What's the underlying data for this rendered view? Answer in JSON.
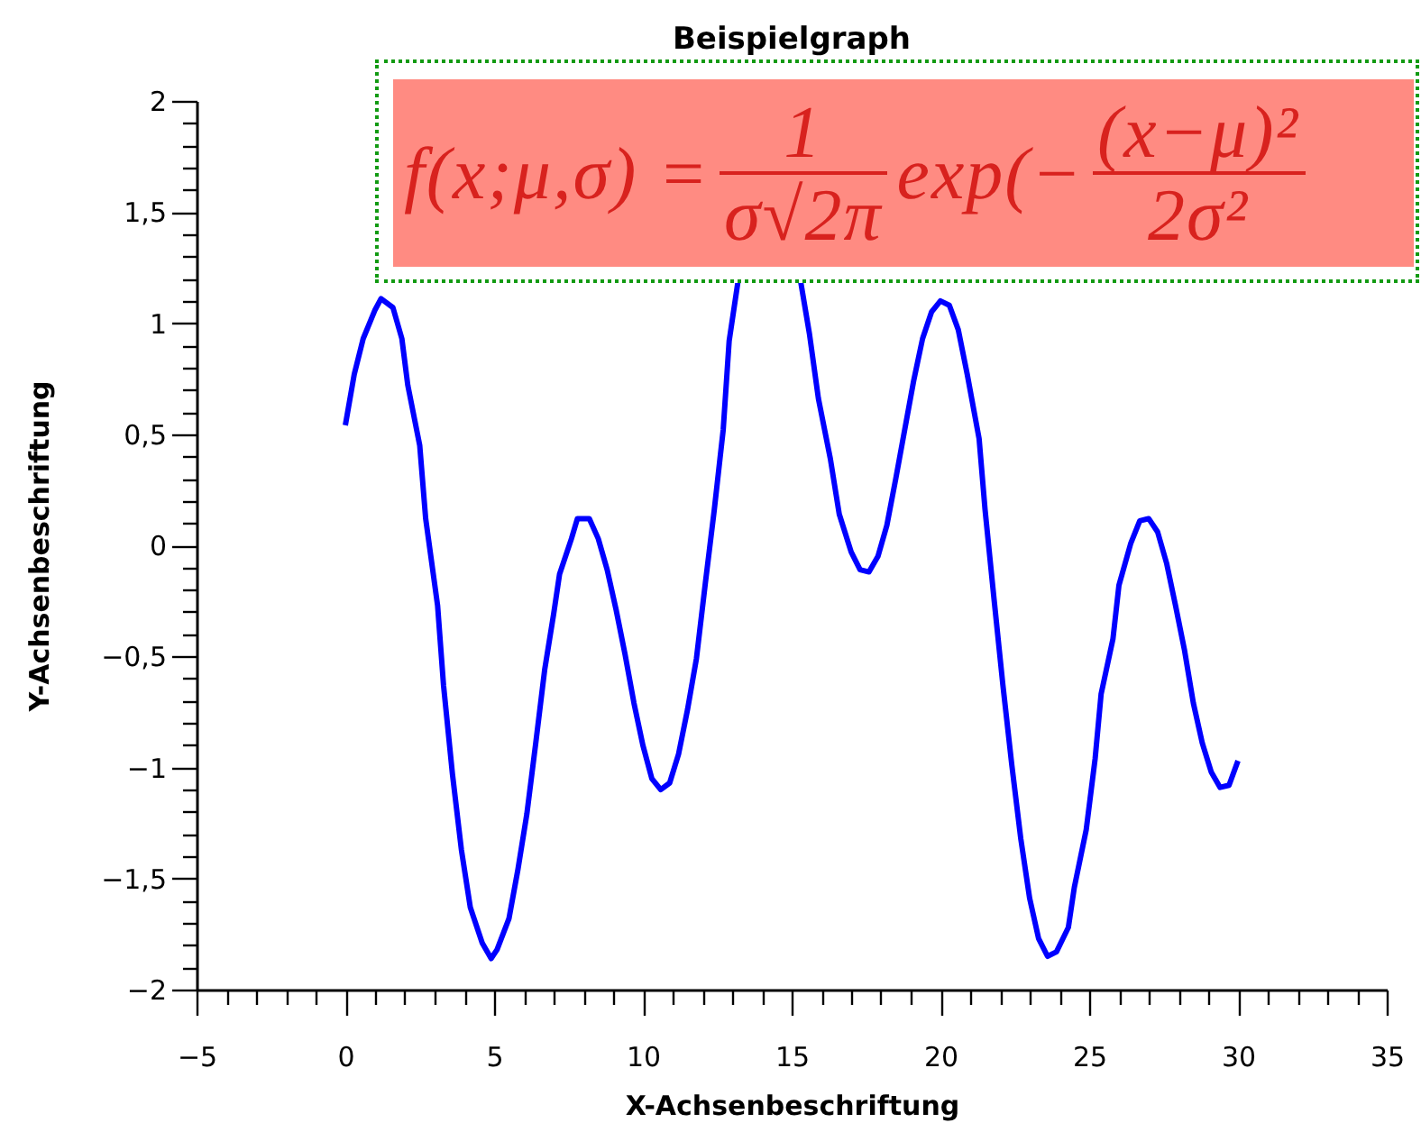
{
  "chart_data": {
    "type": "line",
    "title": "Beispielgraph",
    "xlabel": "X-Achsenbeschriftung",
    "ylabel": "Y-Achsenbeschriftung",
    "annotations": [
      "f(x;μ,σ) =",
      "1",
      "σ√2π",
      "exp(−",
      "(x−μ)²",
      "2σ²"
    ],
    "x": [
      0,
      0.3,
      0.6,
      1.0,
      1.2,
      1.6,
      1.9,
      2.1,
      2.5,
      2.7,
      3.1,
      3.3,
      3.6,
      3.9,
      4.2,
      4.6,
      4.9,
      5.1,
      5.5,
      5.8,
      6.1,
      6.4,
      6.7,
      7.0,
      7.2,
      7.6,
      7.8,
      8.2,
      8.5,
      8.8,
      9.1,
      9.4,
      9.7,
      10.0,
      10.3,
      10.6,
      10.9,
      11.2,
      11.5,
      11.8,
      12.1,
      12.4,
      12.7,
      12.9,
      13.2,
      14.3,
      15.3,
      15.6,
      15.9,
      16.3,
      16.6,
      17.0,
      17.3,
      17.6,
      17.9,
      18.2,
      18.5,
      18.8,
      19.1,
      19.4,
      19.7,
      20.0,
      20.3,
      20.6,
      20.9,
      21.3,
      21.5,
      21.8,
      22.1,
      22.4,
      22.7,
      23.0,
      23.3,
      23.6,
      23.9,
      24.3,
      24.5,
      24.9,
      25.2,
      25.4,
      25.8,
      26.0,
      26.4,
      26.7,
      27.0,
      27.3,
      27.6,
      27.9,
      28.2,
      28.5,
      28.8,
      29.1,
      29.4,
      29.7,
      30.0
    ],
    "series": [
      {
        "color": "#0000ff",
        "values": [
          0.54,
          0.77,
          0.93,
          1.06,
          1.11,
          1.07,
          0.93,
          0.72,
          0.45,
          0.12,
          -0.27,
          -0.63,
          -1.03,
          -1.37,
          -1.63,
          -1.79,
          -1.86,
          -1.82,
          -1.68,
          -1.46,
          -1.21,
          -0.89,
          -0.56,
          -0.31,
          -0.13,
          0.03,
          0.12,
          0.12,
          0.03,
          -0.11,
          -0.29,
          -0.49,
          -0.71,
          -0.9,
          -1.05,
          -1.1,
          -1.07,
          -0.94,
          -0.74,
          -0.51,
          -0.17,
          0.16,
          0.52,
          0.92,
          1.19,
          null,
          1.19,
          0.95,
          0.66,
          0.39,
          0.14,
          -0.03,
          -0.11,
          -0.12,
          -0.05,
          0.09,
          0.3,
          0.52,
          0.74,
          0.93,
          1.05,
          1.1,
          1.08,
          0.97,
          0.77,
          0.48,
          0.16,
          -0.24,
          -0.63,
          -0.99,
          -1.32,
          -1.59,
          -1.77,
          -1.85,
          -1.83,
          -1.72,
          -1.54,
          -1.28,
          -0.96,
          -0.67,
          -0.42,
          -0.18,
          0.01,
          0.11,
          0.12,
          0.06,
          -0.08,
          -0.27,
          -0.47,
          -0.71,
          -0.89,
          -1.02,
          -1.09,
          -1.08,
          -0.97
        ]
      }
    ],
    "xlim": [
      -5,
      35
    ],
    "ylim": [
      -2,
      2
    ],
    "xticks": [
      {
        "value": -5,
        "label": "−5"
      },
      {
        "value": -4,
        "label": null
      },
      {
        "value": -3,
        "label": null
      },
      {
        "value": -2,
        "label": null
      },
      {
        "value": -1,
        "label": null
      },
      0,
      {
        "value": 1,
        "label": null
      },
      {
        "value": 2,
        "label": null
      },
      {
        "value": 3,
        "label": null
      },
      {
        "value": 4,
        "label": null
      },
      5,
      {
        "value": 6,
        "label": null
      },
      {
        "value": 7,
        "label": null
      },
      {
        "value": 8,
        "label": null
      },
      {
        "value": 9,
        "label": null
      },
      10,
      {
        "value": 11,
        "label": null
      },
      {
        "value": 12,
        "label": null
      },
      {
        "value": 13,
        "label": null
      },
      {
        "value": 14,
        "label": null
      },
      15,
      {
        "value": 16,
        "label": null
      },
      {
        "value": 17,
        "label": null
      },
      {
        "value": 18,
        "label": null
      },
      {
        "value": 19,
        "label": null
      },
      20,
      {
        "value": 21,
        "label": null
      },
      {
        "value": 22,
        "label": null
      },
      {
        "value": 23,
        "label": null
      },
      {
        "value": 24,
        "label": null
      },
      25,
      {
        "value": 26,
        "label": null
      },
      {
        "value": 27,
        "label": null
      },
      {
        "value": 28,
        "label": null
      },
      {
        "value": 29,
        "label": null
      },
      30,
      {
        "value": 31,
        "label": null
      },
      {
        "value": 32,
        "label": null
      },
      {
        "value": 33,
        "label": null
      },
      {
        "value": 34,
        "label": null
      },
      35
    ],
    "yticks": [
      {
        "value": -2,
        "label": "−2"
      },
      {
        "value": -1.9,
        "label": null
      },
      {
        "value": -1.8,
        "label": null
      },
      {
        "value": -1.7,
        "label": null
      },
      {
        "value": -1.6,
        "label": null
      },
      {
        "value": -1.5,
        "label": "−1,5"
      },
      {
        "value": -1.4,
        "label": null
      },
      {
        "value": -1.3,
        "label": null
      },
      {
        "value": -1.2,
        "label": null
      },
      {
        "value": -1.1,
        "label": null
      },
      {
        "value": -1,
        "label": "−1"
      },
      {
        "value": -0.9,
        "label": null
      },
      {
        "value": -0.8,
        "label": null
      },
      {
        "value": -0.7,
        "label": null
      },
      {
        "value": -0.6,
        "label": null
      },
      {
        "value": -0.5,
        "label": "−0,5"
      },
      {
        "value": -0.4,
        "label": null
      },
      {
        "value": -0.3,
        "label": null
      },
      {
        "value": -0.2,
        "label": null
      },
      {
        "value": -0.1,
        "label": null
      },
      0,
      {
        "value": 0.1,
        "label": null
      },
      {
        "value": 0.2,
        "label": null
      },
      {
        "value": 0.3,
        "label": null
      },
      {
        "value": 0.4,
        "label": null
      },
      {
        "value": 0.5,
        "label": "0,5"
      },
      {
        "value": 0.6,
        "label": null
      },
      {
        "value": 0.7,
        "label": null
      },
      {
        "value": 0.8,
        "label": null
      },
      {
        "value": 0.9,
        "label": null
      },
      1,
      {
        "value": 1.1,
        "label": null
      },
      {
        "value": 1.2,
        "label": null
      },
      {
        "value": 1.3,
        "label": null
      },
      {
        "value": 1.4,
        "label": null
      },
      {
        "value": 1.5,
        "label": "1,5"
      },
      {
        "value": 1.6,
        "label": null
      },
      {
        "value": 1.7,
        "label": null
      },
      {
        "value": 1.8,
        "label": null
      },
      {
        "value": 1.9,
        "label": null
      },
      2
    ],
    "grid": false,
    "line_style": "solid"
  }
}
